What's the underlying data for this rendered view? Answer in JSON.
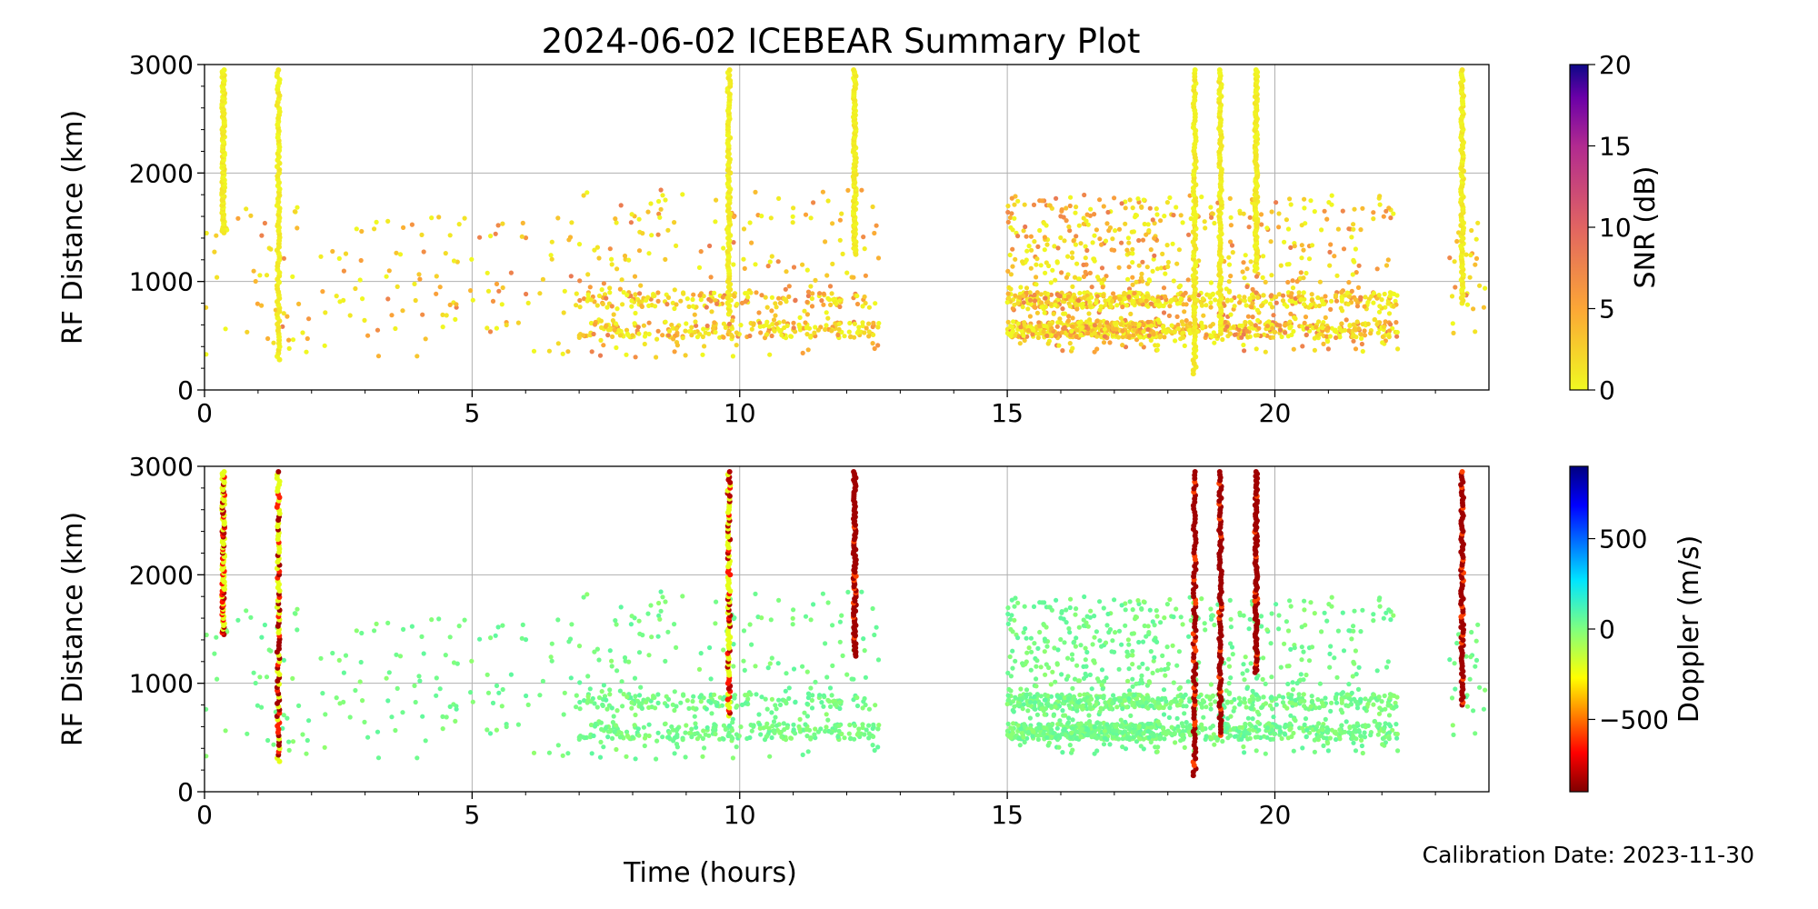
{
  "title": "2024-06-02 ICEBEAR Summary Plot",
  "footer": "Calibration Date: 2023-11-30",
  "chart_data": [
    {
      "type": "scatter",
      "panel": "top",
      "ylabel": "RF Distance (km)",
      "xlabel": "",
      "xlim": [
        0,
        24
      ],
      "ylim": [
        0,
        3000
      ],
      "xticks": [
        0,
        5,
        10,
        15,
        20
      ],
      "yticks": [
        0,
        1000,
        2000,
        3000
      ],
      "grid": true,
      "color_by": "snr",
      "colorbar": {
        "label": "SNR (dB)",
        "range": [
          0,
          20
        ],
        "ticks": [
          0,
          5,
          10,
          15,
          20
        ],
        "tick_labels": [
          "0",
          "5",
          "10",
          "15",
          "20"
        ]
      },
      "vertical_bands": [
        {
          "t": 0.35,
          "y0": 1450,
          "y1": 2950
        },
        {
          "t": 1.38,
          "y0": 280,
          "y1": 2950
        },
        {
          "t": 9.8,
          "y0": 700,
          "y1": 2950
        },
        {
          "t": 12.15,
          "y0": 1250,
          "y1": 2950
        },
        {
          "t": 18.5,
          "y0": 150,
          "y1": 2950
        },
        {
          "t": 18.98,
          "y0": 520,
          "y1": 2950
        },
        {
          "t": 19.65,
          "y0": 1100,
          "y1": 2950
        },
        {
          "t": 23.5,
          "y0": 800,
          "y1": 2950
        }
      ],
      "clusters": [
        {
          "t0": 0.0,
          "t1": 2.0,
          "y0": 300,
          "y1": 1700,
          "n": 45
        },
        {
          "t0": 2.0,
          "t1": 7.0,
          "y0": 300,
          "y1": 1600,
          "n": 110
        },
        {
          "t0": 7.0,
          "t1": 12.6,
          "y0": 300,
          "y1": 1850,
          "n": 560
        },
        {
          "t0": 15.0,
          "t1": 17.8,
          "y0": 350,
          "y1": 1800,
          "n": 900
        },
        {
          "t0": 17.8,
          "t1": 22.3,
          "y0": 350,
          "y1": 1800,
          "n": 750
        },
        {
          "t0": 23.2,
          "t1": 24.0,
          "y0": 500,
          "y1": 1600,
          "n": 25
        }
      ]
    },
    {
      "type": "scatter",
      "panel": "bottom",
      "ylabel": "RF Distance (km)",
      "xlabel": "Time (hours)",
      "xlim": [
        0,
        24
      ],
      "ylim": [
        0,
        3000
      ],
      "xticks": [
        0,
        5,
        10,
        15,
        20
      ],
      "yticks": [
        0,
        1000,
        2000,
        3000
      ],
      "grid": true,
      "color_by": "doppler",
      "colorbar": {
        "label": "Doppler (m/s)",
        "range": [
          -900,
          900
        ],
        "ticks": [
          -500,
          0,
          500
        ],
        "tick_labels": [
          "−500",
          "0",
          "500"
        ]
      },
      "vertical_bands": [
        {
          "t": 0.35,
          "y0": 1450,
          "y1": 2950
        },
        {
          "t": 1.38,
          "y0": 280,
          "y1": 2950
        },
        {
          "t": 9.8,
          "y0": 700,
          "y1": 2950
        },
        {
          "t": 12.15,
          "y0": 1250,
          "y1": 2950
        },
        {
          "t": 18.5,
          "y0": 150,
          "y1": 2950
        },
        {
          "t": 18.98,
          "y0": 520,
          "y1": 2950
        },
        {
          "t": 19.65,
          "y0": 1100,
          "y1": 2950
        },
        {
          "t": 23.5,
          "y0": 800,
          "y1": 2950
        }
      ],
      "clusters": [
        {
          "t0": 0.0,
          "t1": 2.0,
          "y0": 300,
          "y1": 1700,
          "n": 45
        },
        {
          "t0": 2.0,
          "t1": 7.0,
          "y0": 300,
          "y1": 1600,
          "n": 110
        },
        {
          "t0": 7.0,
          "t1": 12.6,
          "y0": 300,
          "y1": 1850,
          "n": 560
        },
        {
          "t0": 15.0,
          "t1": 17.8,
          "y0": 350,
          "y1": 1800,
          "n": 900
        },
        {
          "t0": 17.8,
          "t1": 22.3,
          "y0": 350,
          "y1": 1800,
          "n": 750
        },
        {
          "t0": 23.2,
          "t1": 24.0,
          "y0": 500,
          "y1": 1600,
          "n": 25
        }
      ]
    }
  ]
}
